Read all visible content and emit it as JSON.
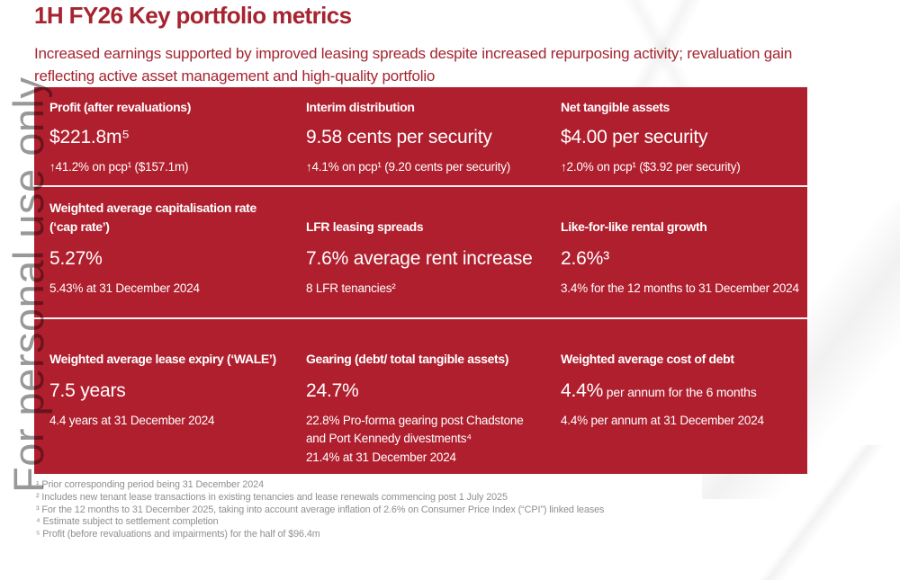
{
  "slide": {
    "title": "1H FY26 Key portfolio metrics",
    "subtitle": "Increased earnings supported by improved leasing spreads despite increased repurposing activity; revaluation gain reflecting active asset management and high-quality portfolio",
    "watermark": "For personal use only"
  },
  "colors": {
    "title_red": "#A52430",
    "card_red": "#B01F2E",
    "row_separator": "#FAF2F2",
    "card_text": "#FFFFFF",
    "footnote_gray": "#8F8F8F",
    "watermark_gray": "#8D8D8D"
  },
  "cards": [
    {
      "label": "Profit (after revaluations)",
      "value": "$221.8m⁵",
      "subs": [
        "↑41.2% on pcp¹ ($157.1m)"
      ]
    },
    {
      "label": "Interim distribution",
      "value": "9.58 cents per security",
      "subs": [
        "↑4.1% on pcp¹ (9.20 cents per security)"
      ]
    },
    {
      "label": "Net tangible assets",
      "value": "$4.00 per security",
      "subs": [
        "↑2.0% on pcp¹ ($3.92 per security)"
      ]
    },
    {
      "label": "Weighted average capitalisation rate (‘cap rate’)",
      "value": "5.27%",
      "subs": [
        "5.43% at 31 December 2024"
      ]
    },
    {
      "label": "LFR leasing spreads",
      "value": "7.6% average rent increase",
      "subs": [
        "8 LFR tenancies²"
      ]
    },
    {
      "label": "Like-for-like rental growth",
      "value": "2.6%³",
      "subs": [
        "3.4% for the 12 months to 31 December 2024"
      ]
    },
    {
      "label": "Weighted average lease expiry (‘WALE’)",
      "value": "7.5 years",
      "subs": [
        "4.4 years at 31 December 2024"
      ]
    },
    {
      "label": "Gearing (debt/ total tangible assets)",
      "value": "24.7%",
      "subs": [
        "22.8% Pro-forma gearing post Chadstone and Port Kennedy divestments⁴",
        "21.4% at 31 December 2024"
      ]
    },
    {
      "label": "Weighted average cost of debt",
      "value": "4.4%",
      "value_suffix": " per annum for the 6 months",
      "subs": [
        "4.4% per annum at 31 December 2024"
      ]
    }
  ],
  "footnotes": [
    "¹ Prior corresponding period being 31 December 2024",
    "² Includes new tenant lease transactions in existing tenancies and lease renewals commencing post 1 July 2025",
    "³ For the 12 months to 31 December 2025, taking into account average inflation of 2.6% on Consumer Price Index (“CPI”) linked leases",
    "⁴ Estimate subject to settlement completion",
    "⁵ Profit (before revaluations and impairments) for the half of $96.4m"
  ]
}
